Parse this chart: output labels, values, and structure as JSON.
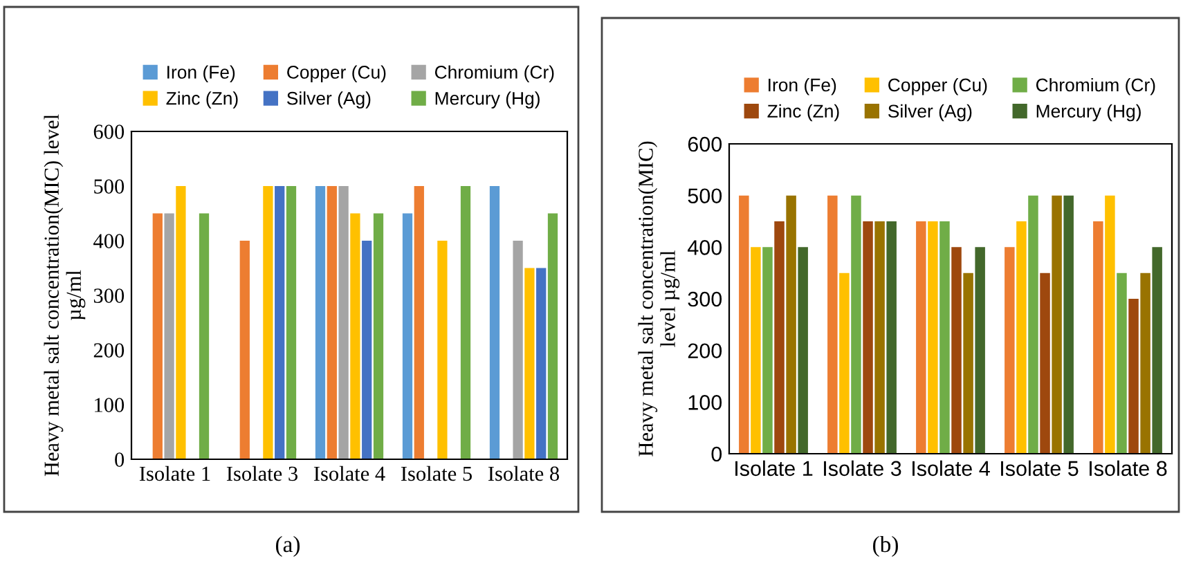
{
  "chart_data": [
    {
      "type": "bar",
      "ylabel": "Heavy metal salt concentration(MIC) level\nµg/ml",
      "categories": [
        "Isolate 1",
        "Isolate 3",
        "Isolate 4",
        "Isolate 5",
        "Isolate 8"
      ],
      "ylim": [
        0,
        600
      ],
      "yticks": [
        0,
        100,
        200,
        300,
        400,
        500,
        600
      ],
      "grid": false,
      "legend": "top",
      "annotations": [
        "(a)"
      ],
      "series": [
        {
          "name": "Iron (Fe)",
          "color": "#5b9bd5",
          "values": [
            0,
            0,
            500,
            450,
            500
          ]
        },
        {
          "name": "Copper (Cu)",
          "color": "#ed7d31",
          "values": [
            450,
            400,
            500,
            500,
            0
          ]
        },
        {
          "name": "Chromium (Cr)",
          "color": "#a5a5a5",
          "values": [
            450,
            0,
            500,
            0,
            400
          ]
        },
        {
          "name": "Zinc (Zn)",
          "color": "#ffc000",
          "values": [
            500,
            500,
            450,
            400,
            350
          ]
        },
        {
          "name": "Silver (Ag)",
          "color": "#4472c4",
          "values": [
            0,
            500,
            400,
            0,
            350
          ]
        },
        {
          "name": "Mercury (Hg)",
          "color": "#70ad47",
          "values": [
            450,
            500,
            450,
            500,
            450
          ]
        }
      ]
    },
    {
      "type": "bar",
      "ylabel": "Heavy metal salt concentration(MIC)\nlevel µg/ml",
      "categories": [
        "Isolate 1",
        "Isolate 3",
        "Isolate 4",
        "Isolate 5",
        "Isolate 8"
      ],
      "ylim": [
        0,
        600
      ],
      "yticks": [
        0,
        100,
        200,
        300,
        400,
        500,
        600
      ],
      "grid": false,
      "legend": "top",
      "annotations": [
        "(b)"
      ],
      "series": [
        {
          "name": "Iron (Fe)",
          "color": "#ed7d31",
          "values": [
            500,
            500,
            450,
            400,
            450
          ]
        },
        {
          "name": "Copper (Cu)",
          "color": "#ffc000",
          "values": [
            400,
            350,
            450,
            450,
            500
          ]
        },
        {
          "name": "Chromium (Cr)",
          "color": "#70ad47",
          "values": [
            400,
            500,
            450,
            500,
            350
          ]
        },
        {
          "name": "Zinc (Zn)",
          "color": "#9e480e",
          "values": [
            450,
            450,
            400,
            350,
            300
          ]
        },
        {
          "name": "Silver (Ag)",
          "color": "#997300",
          "values": [
            500,
            450,
            350,
            500,
            350
          ]
        },
        {
          "name": "Mercury (Hg)",
          "color": "#43682b",
          "values": [
            400,
            450,
            400,
            500,
            400
          ]
        }
      ]
    }
  ]
}
